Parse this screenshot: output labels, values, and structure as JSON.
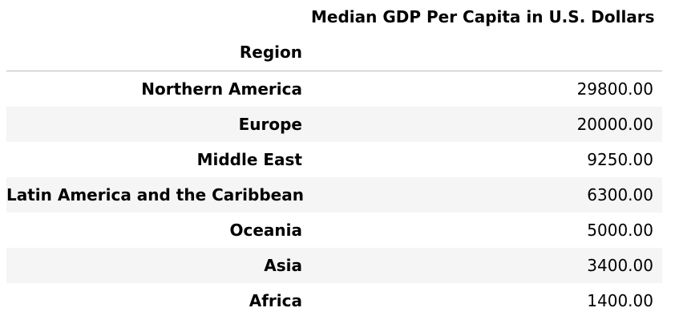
{
  "table": {
    "column_header": "Median GDP Per Capita in U.S. Dollars",
    "index_header": "Region",
    "rows": [
      {
        "region": "Northern America",
        "value": "29800.00"
      },
      {
        "region": "Europe",
        "value": "20000.00"
      },
      {
        "region": "Middle East",
        "value": "9250.00"
      },
      {
        "region": "Latin America and the Caribbean",
        "value": "6300.00"
      },
      {
        "region": "Oceania",
        "value": "5000.00"
      },
      {
        "region": "Asia",
        "value": "3400.00"
      },
      {
        "region": "Africa",
        "value": "1400.00"
      }
    ]
  }
}
